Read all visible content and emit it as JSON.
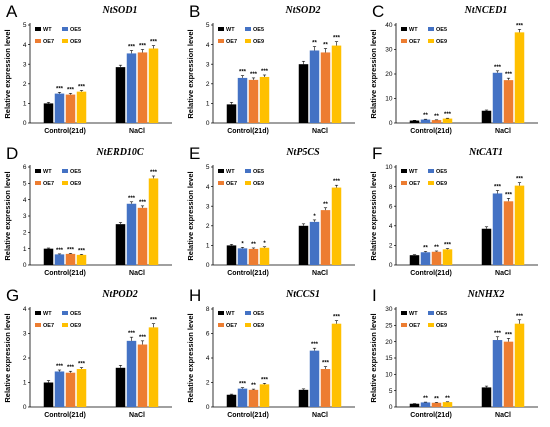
{
  "legend_labels": [
    "WT",
    "OE5",
    "OE7",
    "OE9"
  ],
  "colors": {
    "WT": "#000000",
    "OE5": "#4472c4",
    "OE7": "#ed7d31",
    "OE9": "#ffc000"
  },
  "chart_data": [
    {
      "type": "bar",
      "panel": "A",
      "title": "NtSOD1",
      "ylabel": "Relative expression level",
      "ylim": [
        0,
        5
      ],
      "yticks": [
        0,
        1,
        2,
        3,
        4,
        5
      ],
      "categories": [
        "Control(21d)",
        "NaCl"
      ],
      "series": [
        {
          "name": "WT",
          "values": [
            1.0,
            2.85
          ],
          "errors": [
            0.05,
            0.1
          ],
          "sig": [
            "",
            ""
          ]
        },
        {
          "name": "OE5",
          "values": [
            1.5,
            3.55
          ],
          "errors": [
            0.06,
            0.15
          ],
          "sig": [
            "***",
            "***"
          ]
        },
        {
          "name": "OE7",
          "values": [
            1.45,
            3.6
          ],
          "errors": [
            0.06,
            0.15
          ],
          "sig": [
            "***",
            "***"
          ]
        },
        {
          "name": "OE9",
          "values": [
            1.6,
            3.8
          ],
          "errors": [
            0.06,
            0.15
          ],
          "sig": [
            "***",
            "***"
          ]
        }
      ]
    },
    {
      "type": "bar",
      "panel": "B",
      "title": "NtSOD2",
      "ylabel": "Relative expression level",
      "ylim": [
        0,
        5
      ],
      "yticks": [
        0,
        1,
        2,
        3,
        4,
        5
      ],
      "categories": [
        "Control(21d)",
        "NaCl"
      ],
      "series": [
        {
          "name": "WT",
          "values": [
            0.95,
            3.0
          ],
          "errors": [
            0.1,
            0.15
          ],
          "sig": [
            "",
            ""
          ]
        },
        {
          "name": "OE5",
          "values": [
            2.3,
            3.7
          ],
          "errors": [
            0.12,
            0.2
          ],
          "sig": [
            "***",
            "**"
          ]
        },
        {
          "name": "OE7",
          "values": [
            2.2,
            3.6
          ],
          "errors": [
            0.1,
            0.2
          ],
          "sig": [
            "***",
            "**"
          ]
        },
        {
          "name": "OE9",
          "values": [
            2.35,
            3.95
          ],
          "errors": [
            0.1,
            0.2
          ],
          "sig": [
            "***",
            "***"
          ]
        }
      ]
    },
    {
      "type": "bar",
      "panel": "C",
      "title": "NtNCED1",
      "ylabel": "Relative expression level",
      "ylim": [
        0,
        40
      ],
      "yticks": [
        0,
        10,
        20,
        30,
        40
      ],
      "categories": [
        "Control(21d)",
        "NaCl"
      ],
      "series": [
        {
          "name": "WT",
          "values": [
            1.0,
            5.0
          ],
          "errors": [
            0.1,
            0.3
          ],
          "sig": [
            "",
            ""
          ]
        },
        {
          "name": "OE5",
          "values": [
            1.4,
            20.5
          ],
          "errors": [
            0.15,
            0.8
          ],
          "sig": [
            "**",
            "***"
          ]
        },
        {
          "name": "OE7",
          "values": [
            1.2,
            17.5
          ],
          "errors": [
            0.1,
            0.8
          ],
          "sig": [
            "**",
            "***"
          ]
        },
        {
          "name": "OE9",
          "values": [
            1.8,
            37.0
          ],
          "errors": [
            0.15,
            1.2
          ],
          "sig": [
            "***",
            "***"
          ]
        }
      ]
    },
    {
      "type": "bar",
      "panel": "D",
      "title": "NtERD10C",
      "ylabel": "Relative expression level",
      "ylim": [
        0,
        6
      ],
      "yticks": [
        0,
        1,
        2,
        3,
        4,
        5,
        6
      ],
      "categories": [
        "Control(21d)",
        "NaCl"
      ],
      "series": [
        {
          "name": "WT",
          "values": [
            1.0,
            2.5
          ],
          "errors": [
            0.04,
            0.1
          ],
          "sig": [
            "",
            ""
          ]
        },
        {
          "name": "OE5",
          "values": [
            0.65,
            3.75
          ],
          "errors": [
            0.03,
            0.12
          ],
          "sig": [
            "***",
            "***"
          ]
        },
        {
          "name": "OE7",
          "values": [
            0.68,
            3.5
          ],
          "errors": [
            0.03,
            0.12
          ],
          "sig": [
            "***",
            "***"
          ]
        },
        {
          "name": "OE9",
          "values": [
            0.62,
            5.3
          ],
          "errors": [
            0.03,
            0.15
          ],
          "sig": [
            "***",
            "***"
          ]
        }
      ]
    },
    {
      "type": "bar",
      "panel": "E",
      "title": "NtP5CS",
      "ylabel": "Relative expression level",
      "ylim": [
        0,
        5
      ],
      "yticks": [
        0,
        1,
        2,
        3,
        4,
        5
      ],
      "categories": [
        "Control(21d)",
        "NaCl"
      ],
      "series": [
        {
          "name": "WT",
          "values": [
            1.0,
            2.0
          ],
          "errors": [
            0.05,
            0.1
          ],
          "sig": [
            "",
            ""
          ]
        },
        {
          "name": "OE5",
          "values": [
            0.85,
            2.2
          ],
          "errors": [
            0.05,
            0.1
          ],
          "sig": [
            "*",
            "*"
          ]
        },
        {
          "name": "OE7",
          "values": [
            0.82,
            2.8
          ],
          "errors": [
            0.05,
            0.12
          ],
          "sig": [
            "**",
            "**"
          ]
        },
        {
          "name": "OE9",
          "values": [
            0.88,
            3.95
          ],
          "errors": [
            0.05,
            0.12
          ],
          "sig": [
            "*",
            "***"
          ]
        }
      ]
    },
    {
      "type": "bar",
      "panel": "F",
      "title": "NtCAT1",
      "ylabel": "Relative expression level",
      "ylim": [
        0,
        10
      ],
      "yticks": [
        0,
        2,
        4,
        6,
        8,
        10
      ],
      "categories": [
        "Control(21d)",
        "NaCl"
      ],
      "series": [
        {
          "name": "WT",
          "values": [
            1.0,
            3.7
          ],
          "errors": [
            0.05,
            0.2
          ],
          "sig": [
            "",
            ""
          ]
        },
        {
          "name": "OE5",
          "values": [
            1.3,
            7.3
          ],
          "errors": [
            0.08,
            0.3
          ],
          "sig": [
            "**",
            "***"
          ]
        },
        {
          "name": "OE7",
          "values": [
            1.35,
            6.5
          ],
          "errors": [
            0.08,
            0.3
          ],
          "sig": [
            "**",
            "***"
          ]
        },
        {
          "name": "OE9",
          "values": [
            1.6,
            8.1
          ],
          "errors": [
            0.08,
            0.3
          ],
          "sig": [
            "***",
            "***"
          ]
        }
      ]
    },
    {
      "type": "bar",
      "panel": "G",
      "title": "NtPOD2",
      "ylabel": "Relative expression level",
      "ylim": [
        0,
        4
      ],
      "yticks": [
        0,
        1,
        2,
        3,
        4
      ],
      "categories": [
        "Control(21d)",
        "NaCl"
      ],
      "series": [
        {
          "name": "WT",
          "values": [
            1.0,
            1.6
          ],
          "errors": [
            0.08,
            0.1
          ],
          "sig": [
            "",
            ""
          ]
        },
        {
          "name": "OE5",
          "values": [
            1.45,
            2.7
          ],
          "errors": [
            0.06,
            0.15
          ],
          "sig": [
            "***",
            "***"
          ]
        },
        {
          "name": "OE7",
          "values": [
            1.4,
            2.55
          ],
          "errors": [
            0.06,
            0.15
          ],
          "sig": [
            "***",
            "***"
          ]
        },
        {
          "name": "OE9",
          "values": [
            1.55,
            3.25
          ],
          "errors": [
            0.06,
            0.15
          ],
          "sig": [
            "***",
            "***"
          ]
        }
      ]
    },
    {
      "type": "bar",
      "panel": "H",
      "title": "NtCCS1",
      "ylabel": "Relative expression level",
      "ylim": [
        0,
        8
      ],
      "yticks": [
        0,
        2,
        4,
        6,
        8
      ],
      "categories": [
        "Control(21d)",
        "NaCl"
      ],
      "series": [
        {
          "name": "WT",
          "values": [
            1.0,
            1.4
          ],
          "errors": [
            0.05,
            0.08
          ],
          "sig": [
            "",
            ""
          ]
        },
        {
          "name": "OE5",
          "values": [
            1.5,
            4.6
          ],
          "errors": [
            0.08,
            0.2
          ],
          "sig": [
            "***",
            "***"
          ]
        },
        {
          "name": "OE7",
          "values": [
            1.4,
            3.1
          ],
          "errors": [
            0.06,
            0.2
          ],
          "sig": [
            "**",
            "***"
          ]
        },
        {
          "name": "OE9",
          "values": [
            1.85,
            6.8
          ],
          "errors": [
            0.08,
            0.25
          ],
          "sig": [
            "***",
            "***"
          ]
        }
      ]
    },
    {
      "type": "bar",
      "panel": "I",
      "title": "NtNHX2",
      "ylabel": "Relative expression level",
      "ylim": [
        0,
        30
      ],
      "yticks": [
        0,
        5,
        10,
        15,
        20,
        25,
        30
      ],
      "categories": [
        "Control(21d)",
        "NaCl"
      ],
      "series": [
        {
          "name": "WT",
          "values": [
            1.0,
            6.0
          ],
          "errors": [
            0.05,
            0.4
          ],
          "sig": [
            "",
            ""
          ]
        },
        {
          "name": "OE5",
          "values": [
            1.4,
            20.5
          ],
          "errors": [
            0.1,
            1.0
          ],
          "sig": [
            "**",
            "***"
          ]
        },
        {
          "name": "OE7",
          "values": [
            1.3,
            20.0
          ],
          "errors": [
            0.1,
            1.0
          ],
          "sig": [
            "**",
            "***"
          ]
        },
        {
          "name": "OE9",
          "values": [
            1.5,
            25.5
          ],
          "errors": [
            0.1,
            1.2
          ],
          "sig": [
            "**",
            "***"
          ]
        }
      ]
    }
  ]
}
